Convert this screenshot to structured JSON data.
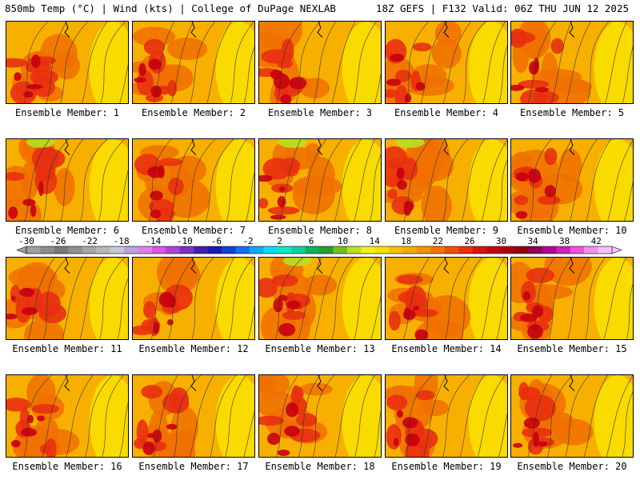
{
  "header": {
    "left": "850mb Temp (°C) | Wind (kts) | College of DuPage NEXLAB",
    "right": "18Z GEFS | F132 Valid: 06Z THU JUN 12 2025"
  },
  "panels": [
    {
      "label": "Ensemble Member: 1"
    },
    {
      "label": "Ensemble Member: 2"
    },
    {
      "label": "Ensemble Member: 3"
    },
    {
      "label": "Ensemble Member: 4"
    },
    {
      "label": "Ensemble Member: 5"
    },
    {
      "label": "Ensemble Member: 6"
    },
    {
      "label": "Ensemble Member: 7"
    },
    {
      "label": "Ensemble Member: 8"
    },
    {
      "label": "Ensemble Member: 9"
    },
    {
      "label": "Ensemble Member: 10"
    },
    {
      "label": "Ensemble Member: 11"
    },
    {
      "label": "Ensemble Member: 12"
    },
    {
      "label": "Ensemble Member: 13"
    },
    {
      "label": "Ensemble Member: 14"
    },
    {
      "label": "Ensemble Member: 15"
    },
    {
      "label": "Ensemble Member: 16"
    },
    {
      "label": "Ensemble Member: 17"
    },
    {
      "label": "Ensemble Member: 18"
    },
    {
      "label": "Ensemble Member: 19"
    },
    {
      "label": "Ensemble Member: 20"
    }
  ],
  "colorbar": {
    "ticks": [
      "-30",
      "-26",
      "-22",
      "-18",
      "-14",
      "-10",
      "-6",
      "-2",
      "2",
      "6",
      "10",
      "14",
      "18",
      "22",
      "26",
      "30",
      "34",
      "38",
      "42"
    ],
    "colors": [
      "#a0a0a0",
      "#8c8c8c",
      "#7a7a7a",
      "#909090",
      "#a7a7a7",
      "#b9b9b9",
      "#c7c7d7",
      "#bfa0df",
      "#df80ef",
      "#e050e8",
      "#b040d8",
      "#8030c8",
      "#4020b0",
      "#1a1ab0",
      "#1040d8",
      "#1070f0",
      "#10a8f8",
      "#10d8f8",
      "#10e8c8",
      "#10d0a0",
      "#10b060",
      "#20a030",
      "#70c020",
      "#b8e020",
      "#f0f020",
      "#f8e000",
      "#f8c000",
      "#f8a800",
      "#f89000",
      "#f87000",
      "#f05000",
      "#e83010",
      "#d81010",
      "#c80010",
      "#b00010",
      "#900010",
      "#900050",
      "#b00090",
      "#d020c0",
      "#f050e0",
      "#f890f0",
      "#f8c0f8"
    ],
    "arrow_colors": [
      "#a0a0a0",
      "#f8c0f8"
    ]
  }
}
